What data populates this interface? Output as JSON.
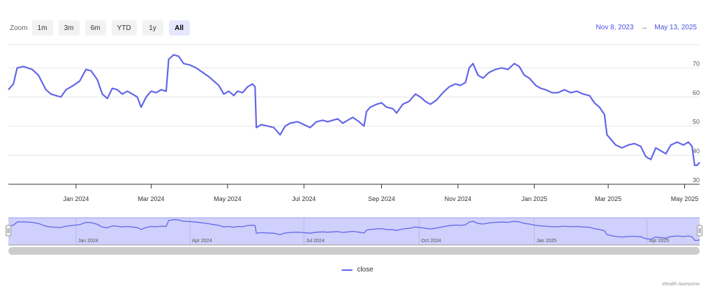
{
  "zoom": {
    "label": "Zoom",
    "buttons": [
      "1m",
      "3m",
      "6m",
      "YTD",
      "1y",
      "All"
    ],
    "active": "All"
  },
  "range": {
    "from": "Nov 8, 2023",
    "arrow": "→",
    "to": "May 13, 2025"
  },
  "colors": {
    "line": "#6366e8",
    "navigator_fill": "#cfd0fb",
    "grid": "#e6e6e6",
    "accent": "#4a52e0"
  },
  "legend": {
    "label": "close"
  },
  "credit": "Wealth Awesome",
  "chart_data": {
    "type": "line",
    "x_start": "2023-11-08",
    "x_end": "2025-05-13",
    "ylim": [
      30,
      78
    ],
    "yticks": [
      30,
      40,
      50,
      60,
      70
    ],
    "xticks": [
      {
        "date": "2024-01-01",
        "label": "Jan 2024"
      },
      {
        "date": "2024-03-01",
        "label": "Mar 2024"
      },
      {
        "date": "2024-05-01",
        "label": "May 2024"
      },
      {
        "date": "2024-07-01",
        "label": "Jul 2024"
      },
      {
        "date": "2024-09-01",
        "label": "Sep 2024"
      },
      {
        "date": "2024-11-01",
        "label": "Nov 2024"
      },
      {
        "date": "2025-01-01",
        "label": "Jan 2025"
      },
      {
        "date": "2025-03-01",
        "label": "Mar 2025"
      },
      {
        "date": "2025-05-01",
        "label": "May 2025"
      }
    ],
    "navigator_xticks": [
      {
        "date": "2024-01-01",
        "label": "Jan 2024"
      },
      {
        "date": "2024-04-01",
        "label": "Apr 2024"
      },
      {
        "date": "2024-07-01",
        "label": "Jul 2024"
      },
      {
        "date": "2024-10-01",
        "label": "Oct 2024"
      },
      {
        "date": "2025-01-01",
        "label": "Jan 2025"
      },
      {
        "date": "2025-04-01",
        "label": "Apr 2025"
      }
    ],
    "series": [
      {
        "name": "close",
        "points": [
          [
            "2023-11-08",
            62.5
          ],
          [
            "2023-11-12",
            64.5
          ],
          [
            "2023-11-15",
            70.0
          ],
          [
            "2023-11-20",
            70.5
          ],
          [
            "2023-11-27",
            69.5
          ],
          [
            "2023-12-02",
            67.5
          ],
          [
            "2023-12-08",
            62.5
          ],
          [
            "2023-12-12",
            61.0
          ],
          [
            "2023-12-16",
            60.5
          ],
          [
            "2023-12-20",
            60.0
          ],
          [
            "2023-12-24",
            62.5
          ],
          [
            "2023-12-30",
            64.0
          ],
          [
            "2024-01-04",
            65.5
          ],
          [
            "2024-01-09",
            69.5
          ],
          [
            "2024-01-13",
            69.0
          ],
          [
            "2024-01-18",
            66.0
          ],
          [
            "2024-01-22",
            61.0
          ],
          [
            "2024-01-26",
            59.5
          ],
          [
            "2024-01-30",
            63.0
          ],
          [
            "2024-02-03",
            62.5
          ],
          [
            "2024-02-07",
            61.0
          ],
          [
            "2024-02-11",
            62.0
          ],
          [
            "2024-02-15",
            61.0
          ],
          [
            "2024-02-19",
            60.0
          ],
          [
            "2024-02-22",
            56.5
          ],
          [
            "2024-02-26",
            60.0
          ],
          [
            "2024-03-01",
            62.0
          ],
          [
            "2024-03-05",
            61.5
          ],
          [
            "2024-03-09",
            62.5
          ],
          [
            "2024-03-13",
            62.0
          ],
          [
            "2024-03-15",
            73.0
          ],
          [
            "2024-03-19",
            74.5
          ],
          [
            "2024-03-23",
            74.0
          ],
          [
            "2024-03-27",
            71.5
          ],
          [
            "2024-04-01",
            71.0
          ],
          [
            "2024-04-06",
            70.0
          ],
          [
            "2024-04-11",
            68.5
          ],
          [
            "2024-04-16",
            67.0
          ],
          [
            "2024-04-20",
            65.5
          ],
          [
            "2024-04-24",
            64.0
          ],
          [
            "2024-04-28",
            61.0
          ],
          [
            "2024-05-02",
            62.0
          ],
          [
            "2024-05-06",
            60.5
          ],
          [
            "2024-05-09",
            62.0
          ],
          [
            "2024-05-13",
            61.5
          ],
          [
            "2024-05-17",
            63.5
          ],
          [
            "2024-05-21",
            64.5
          ],
          [
            "2024-05-23",
            63.5
          ],
          [
            "2024-05-24",
            49.5
          ],
          [
            "2024-05-28",
            50.5
          ],
          [
            "2024-06-02",
            50.0
          ],
          [
            "2024-06-07",
            49.5
          ],
          [
            "2024-06-12",
            47.0
          ],
          [
            "2024-06-16",
            50.0
          ],
          [
            "2024-06-20",
            51.0
          ],
          [
            "2024-06-26",
            51.5
          ],
          [
            "2024-07-01",
            50.5
          ],
          [
            "2024-07-06",
            49.5
          ],
          [
            "2024-07-11",
            51.5
          ],
          [
            "2024-07-16",
            52.0
          ],
          [
            "2024-07-20",
            51.5
          ],
          [
            "2024-07-24",
            52.0
          ],
          [
            "2024-07-28",
            52.5
          ],
          [
            "2024-08-01",
            51.0
          ],
          [
            "2024-08-05",
            52.0
          ],
          [
            "2024-08-09",
            53.0
          ],
          [
            "2024-08-14",
            51.5
          ],
          [
            "2024-08-18",
            50.0
          ],
          [
            "2024-08-20",
            55.0
          ],
          [
            "2024-08-23",
            56.5
          ],
          [
            "2024-08-28",
            57.5
          ],
          [
            "2024-09-01",
            58.0
          ],
          [
            "2024-09-05",
            56.5
          ],
          [
            "2024-09-10",
            56.0
          ],
          [
            "2024-09-13",
            54.5
          ],
          [
            "2024-09-18",
            57.5
          ],
          [
            "2024-09-23",
            58.5
          ],
          [
            "2024-09-28",
            61.0
          ],
          [
            "2024-10-02",
            60.0
          ],
          [
            "2024-10-06",
            58.5
          ],
          [
            "2024-10-10",
            57.5
          ],
          [
            "2024-10-15",
            59.0
          ],
          [
            "2024-10-20",
            61.5
          ],
          [
            "2024-10-25",
            63.5
          ],
          [
            "2024-10-30",
            64.5
          ],
          [
            "2024-11-03",
            64.0
          ],
          [
            "2024-11-07",
            65.0
          ],
          [
            "2024-11-10",
            70.0
          ],
          [
            "2024-11-13",
            71.5
          ],
          [
            "2024-11-17",
            67.5
          ],
          [
            "2024-11-21",
            66.5
          ],
          [
            "2024-11-26",
            68.5
          ],
          [
            "2024-12-01",
            69.5
          ],
          [
            "2024-12-06",
            70.0
          ],
          [
            "2024-12-11",
            69.5
          ],
          [
            "2024-12-16",
            71.5
          ],
          [
            "2024-12-20",
            70.5
          ],
          [
            "2024-12-24",
            67.5
          ],
          [
            "2024-12-28",
            66.5
          ],
          [
            "2025-01-02",
            64.0
          ],
          [
            "2025-01-06",
            63.0
          ],
          [
            "2025-01-10",
            62.5
          ],
          [
            "2025-01-15",
            61.5
          ],
          [
            "2025-01-20",
            61.5
          ],
          [
            "2025-01-25",
            62.5
          ],
          [
            "2025-01-30",
            61.5
          ],
          [
            "2025-02-04",
            62.0
          ],
          [
            "2025-02-09",
            61.0
          ],
          [
            "2025-02-14",
            60.5
          ],
          [
            "2025-02-18",
            58.0
          ],
          [
            "2025-02-22",
            56.5
          ],
          [
            "2025-02-26",
            54.0
          ],
          [
            "2025-02-28",
            47.0
          ],
          [
            "2025-03-03",
            45.5
          ],
          [
            "2025-03-07",
            43.5
          ],
          [
            "2025-03-12",
            42.5
          ],
          [
            "2025-03-17",
            43.5
          ],
          [
            "2025-03-22",
            44.0
          ],
          [
            "2025-03-27",
            43.0
          ],
          [
            "2025-03-31",
            39.5
          ],
          [
            "2025-04-04",
            38.5
          ],
          [
            "2025-04-08",
            42.5
          ],
          [
            "2025-04-12",
            41.5
          ],
          [
            "2025-04-16",
            40.5
          ],
          [
            "2025-04-20",
            43.5
          ],
          [
            "2025-04-25",
            44.5
          ],
          [
            "2025-04-30",
            43.5
          ],
          [
            "2025-05-04",
            44.5
          ],
          [
            "2025-05-07",
            43.0
          ],
          [
            "2025-05-09",
            36.5
          ],
          [
            "2025-05-11",
            36.5
          ],
          [
            "2025-05-13",
            37.5
          ]
        ]
      }
    ]
  }
}
